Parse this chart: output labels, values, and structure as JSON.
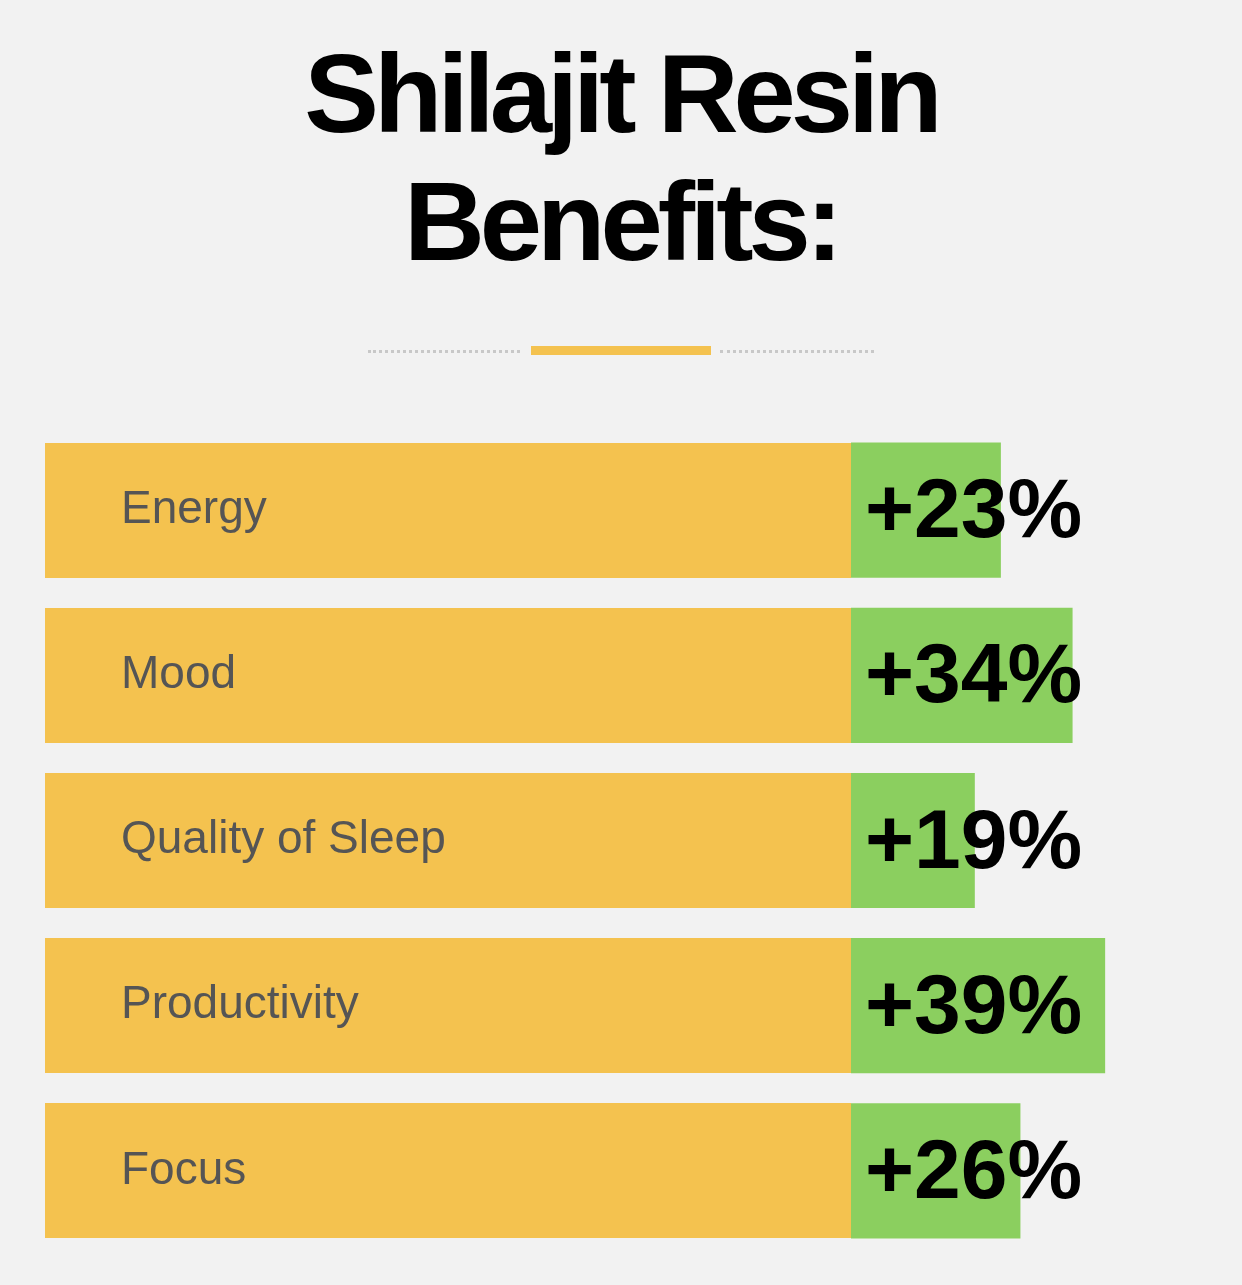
{
  "chart_data": {
    "type": "bar",
    "orientation": "horizontal",
    "title": "Shilajit Resin Benefits:",
    "categories": [
      "Energy",
      "Mood",
      "Quality of Sleep",
      "Productivity",
      "Focus"
    ],
    "values": [
      23,
      34,
      19,
      39,
      26
    ],
    "value_labels": [
      "+23%",
      "+34%",
      "+19%",
      "+39%",
      "+26%"
    ],
    "color": "#8bcf5f",
    "legend": false
  }
}
